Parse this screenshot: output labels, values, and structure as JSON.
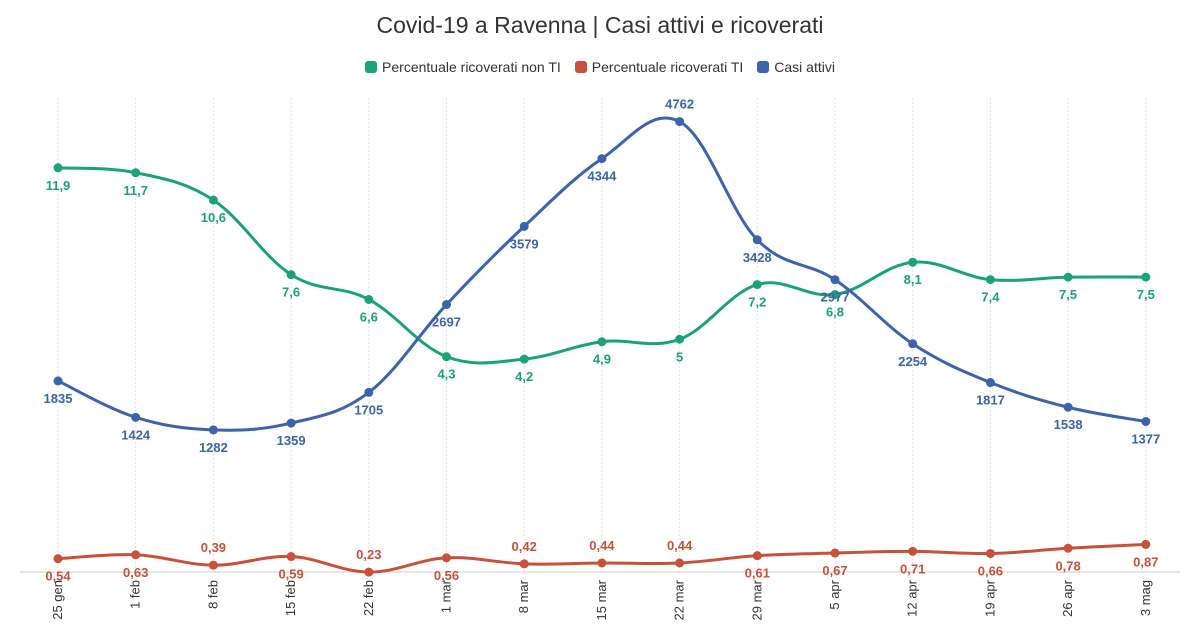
{
  "chart_data": {
    "type": "line",
    "title": "Covid-19 a Ravenna | Casi attivi e ricoverati",
    "categories": [
      "25 gen",
      "1 feb",
      "8 feb",
      "15 feb",
      "22 feb",
      "1 mar",
      "8 mar",
      "15 mar",
      "22 mar",
      "29 mar",
      "5 apr",
      "12 apr",
      "19 apr",
      "26 apr",
      "3 mag"
    ],
    "series": [
      {
        "name": "Percentuale ricoverati non TI",
        "color": "#1aa37a",
        "values": [
          11.9,
          11.7,
          10.6,
          7.6,
          6.6,
          4.3,
          4.2,
          4.9,
          5,
          7.2,
          6.8,
          8.1,
          7.4,
          7.5,
          7.5
        ],
        "labels": [
          "11,9",
          "11,7",
          "10,6",
          "7,6",
          "6,6",
          "4,3",
          "4,2",
          "4,9",
          "5",
          "7,2",
          "6,8",
          "8,1",
          "7,4",
          "7,5",
          "7,5"
        ]
      },
      {
        "name": "Percentuale ricoverati TI",
        "color": "#c9513b",
        "values": [
          0.54,
          0.63,
          0.39,
          0.59,
          0.23,
          0.56,
          0.42,
          0.44,
          0.44,
          0.61,
          0.67,
          0.71,
          0.66,
          0.78,
          0.87
        ],
        "labels": [
          "0,54",
          "0,63",
          "0,39",
          "0,59",
          "0,23",
          "0,56",
          "0,42",
          "0,44",
          "0,44",
          "0,61",
          "0,67",
          "0,71",
          "0,66",
          "0,78",
          "0,87"
        ]
      },
      {
        "name": "Casi attivi",
        "color": "#3b64ad",
        "values": [
          1835,
          1424,
          1282,
          1359,
          1705,
          2697,
          3579,
          4344,
          4762,
          3428,
          2977,
          2254,
          1817,
          1538,
          1377
        ],
        "labels": [
          "1835",
          "1424",
          "1282",
          "1359",
          "1705",
          "2697",
          "3579",
          "4344",
          "4762",
          "3428",
          "2977",
          "2254",
          "1817",
          "1538",
          "1377"
        ]
      }
    ],
    "grid": true,
    "legend_position": "top-center",
    "xlabel": "",
    "ylabel": ""
  }
}
